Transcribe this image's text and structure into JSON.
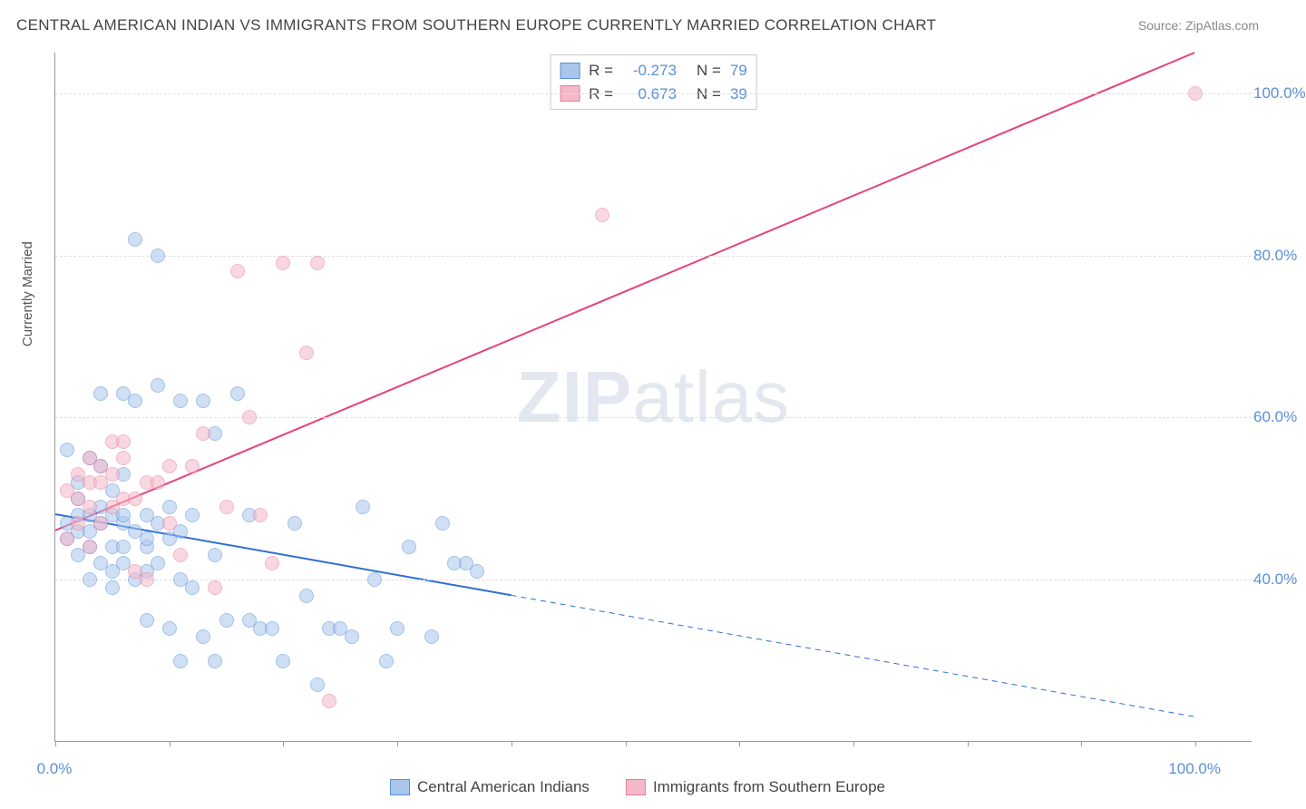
{
  "title": "CENTRAL AMERICAN INDIAN VS IMMIGRANTS FROM SOUTHERN EUROPE CURRENTLY MARRIED CORRELATION CHART",
  "source": "Source: ZipAtlas.com",
  "ylabel": "Currently Married",
  "watermark_a": "ZIP",
  "watermark_b": "atlas",
  "chart": {
    "type": "scatter",
    "xlim": [
      0,
      105
    ],
    "ylim": [
      20,
      105
    ],
    "x_ticks": [
      0,
      10,
      20,
      30,
      40,
      50,
      60,
      70,
      80,
      90,
      100
    ],
    "x_tick_labels": {
      "0": "0.0%",
      "100": "100.0%"
    },
    "y_ticks": [
      40,
      60,
      80,
      100
    ],
    "y_tick_labels": {
      "40": "40.0%",
      "60": "60.0%",
      "80": "80.0%",
      "100": "100.0%"
    },
    "grid_color": "#dddddd",
    "axis_color": "#999999",
    "tick_label_color": "#5a8fd6",
    "background_color": "#ffffff",
    "point_radius": 8,
    "point_opacity": 0.55,
    "series": [
      {
        "name": "Central American Indians",
        "fill": "#a8c6ec",
        "stroke": "#5a8fd6",
        "line_color": "#2e6fd1",
        "line_width": 2,
        "r": "-0.273",
        "n": "79",
        "trend": {
          "x1": 0,
          "y1": 48,
          "x2_solid": 40,
          "y2_solid": 38,
          "x2_dash": 100,
          "y2_dash": 23
        },
        "data": [
          [
            1,
            56
          ],
          [
            1,
            45
          ],
          [
            1,
            47
          ],
          [
            2,
            52
          ],
          [
            2,
            43
          ],
          [
            2,
            46
          ],
          [
            2,
            48
          ],
          [
            2,
            50
          ],
          [
            3,
            40
          ],
          [
            3,
            46
          ],
          [
            3,
            55
          ],
          [
            3,
            48
          ],
          [
            3,
            44
          ],
          [
            4,
            42
          ],
          [
            4,
            47
          ],
          [
            4,
            54
          ],
          [
            4,
            49
          ],
          [
            4,
            63
          ],
          [
            5,
            39
          ],
          [
            5,
            48
          ],
          [
            5,
            44
          ],
          [
            5,
            41
          ],
          [
            5,
            51
          ],
          [
            6,
            47
          ],
          [
            6,
            44
          ],
          [
            6,
            42
          ],
          [
            6,
            48
          ],
          [
            6,
            53
          ],
          [
            6,
            63
          ],
          [
            7,
            46
          ],
          [
            7,
            40
          ],
          [
            7,
            62
          ],
          [
            7,
            82
          ],
          [
            8,
            44
          ],
          [
            8,
            41
          ],
          [
            8,
            35
          ],
          [
            8,
            45
          ],
          [
            8,
            48
          ],
          [
            9,
            42
          ],
          [
            9,
            47
          ],
          [
            9,
            64
          ],
          [
            9,
            80
          ],
          [
            10,
            34
          ],
          [
            10,
            49
          ],
          [
            10,
            45
          ],
          [
            11,
            40
          ],
          [
            11,
            30
          ],
          [
            11,
            46
          ],
          [
            11,
            62
          ],
          [
            12,
            39
          ],
          [
            12,
            48
          ],
          [
            13,
            33
          ],
          [
            13,
            62
          ],
          [
            14,
            43
          ],
          [
            14,
            58
          ],
          [
            14,
            30
          ],
          [
            15,
            35
          ],
          [
            16,
            63
          ],
          [
            17,
            48
          ],
          [
            17,
            35
          ],
          [
            18,
            34
          ],
          [
            19,
            34
          ],
          [
            20,
            30
          ],
          [
            21,
            47
          ],
          [
            22,
            38
          ],
          [
            23,
            27
          ],
          [
            24,
            34
          ],
          [
            25,
            34
          ],
          [
            26,
            33
          ],
          [
            27,
            49
          ],
          [
            28,
            40
          ],
          [
            29,
            30
          ],
          [
            30,
            34
          ],
          [
            31,
            44
          ],
          [
            33,
            33
          ],
          [
            34,
            47
          ],
          [
            35,
            42
          ],
          [
            36,
            42
          ],
          [
            37,
            41
          ]
        ]
      },
      {
        "name": "Immigrants from Southern Europe",
        "fill": "#f5b8c8",
        "stroke": "#e87ba0",
        "line_color": "#e6427a",
        "line_width": 2,
        "r": "0.673",
        "n": "39",
        "trend": {
          "x1": 0,
          "y1": 46,
          "x2_solid": 100,
          "y2_solid": 105,
          "x2_dash": 100,
          "y2_dash": 105
        },
        "data": [
          [
            1,
            45
          ],
          [
            1,
            51
          ],
          [
            2,
            53
          ],
          [
            2,
            47
          ],
          [
            2,
            50
          ],
          [
            3,
            49
          ],
          [
            3,
            52
          ],
          [
            3,
            55
          ],
          [
            3,
            44
          ],
          [
            4,
            52
          ],
          [
            4,
            47
          ],
          [
            4,
            54
          ],
          [
            5,
            53
          ],
          [
            5,
            57
          ],
          [
            5,
            49
          ],
          [
            6,
            50
          ],
          [
            6,
            55
          ],
          [
            6,
            57
          ],
          [
            7,
            41
          ],
          [
            7,
            50
          ],
          [
            8,
            52
          ],
          [
            8,
            40
          ],
          [
            9,
            52
          ],
          [
            10,
            47
          ],
          [
            10,
            54
          ],
          [
            11,
            43
          ],
          [
            12,
            54
          ],
          [
            13,
            58
          ],
          [
            14,
            39
          ],
          [
            15,
            49
          ],
          [
            16,
            78
          ],
          [
            17,
            60
          ],
          [
            18,
            48
          ],
          [
            19,
            42
          ],
          [
            20,
            79
          ],
          [
            22,
            68
          ],
          [
            23,
            79
          ],
          [
            24,
            25
          ],
          [
            48,
            85
          ],
          [
            100,
            100
          ]
        ]
      }
    ]
  },
  "legend": {
    "r_label": "R =",
    "n_label": "N ="
  }
}
